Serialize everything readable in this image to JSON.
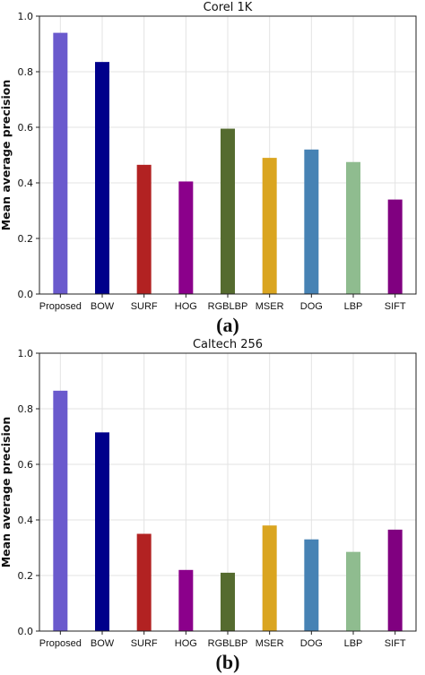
{
  "chart_data": [
    {
      "type": "bar",
      "title": "Corel 1K",
      "xlabel": "",
      "ylabel": "Mean average precision",
      "ylim": [
        0,
        1.0
      ],
      "yticks": [
        "0.0",
        "0.2",
        "0.4",
        "0.6",
        "0.8",
        "1.0"
      ],
      "grid": true,
      "categories": [
        "Proposed",
        "BOW",
        "SURF",
        "HOG",
        "RGBLBP",
        "MSER",
        "DOG",
        "LBP",
        "SIFT"
      ],
      "values": [
        0.94,
        0.835,
        0.465,
        0.405,
        0.595,
        0.49,
        0.52,
        0.475,
        0.34
      ],
      "colors": [
        "#6a5acd",
        "#00008b",
        "#b22222",
        "#8b008b",
        "#556b2f",
        "#daa520",
        "#4682b4",
        "#8fbc8f",
        "#800080"
      ],
      "panel_label": "(a)"
    },
    {
      "type": "bar",
      "title": "Caltech 256",
      "xlabel": "",
      "ylabel": "Mean average precision",
      "ylim": [
        0,
        1.0
      ],
      "yticks": [
        "0.0",
        "0.2",
        "0.4",
        "0.6",
        "0.8",
        "1.0"
      ],
      "grid": true,
      "categories": [
        "Proposed",
        "BOW",
        "SURF",
        "HOG",
        "RGBLBP",
        "MSER",
        "DOG",
        "LBP",
        "SIFT"
      ],
      "values": [
        0.865,
        0.715,
        0.35,
        0.22,
        0.21,
        0.38,
        0.33,
        0.285,
        0.365
      ],
      "colors": [
        "#6a5acd",
        "#00008b",
        "#b22222",
        "#8b008b",
        "#556b2f",
        "#daa520",
        "#4682b4",
        "#8fbc8f",
        "#800080"
      ],
      "panel_label": "(b)"
    }
  ]
}
